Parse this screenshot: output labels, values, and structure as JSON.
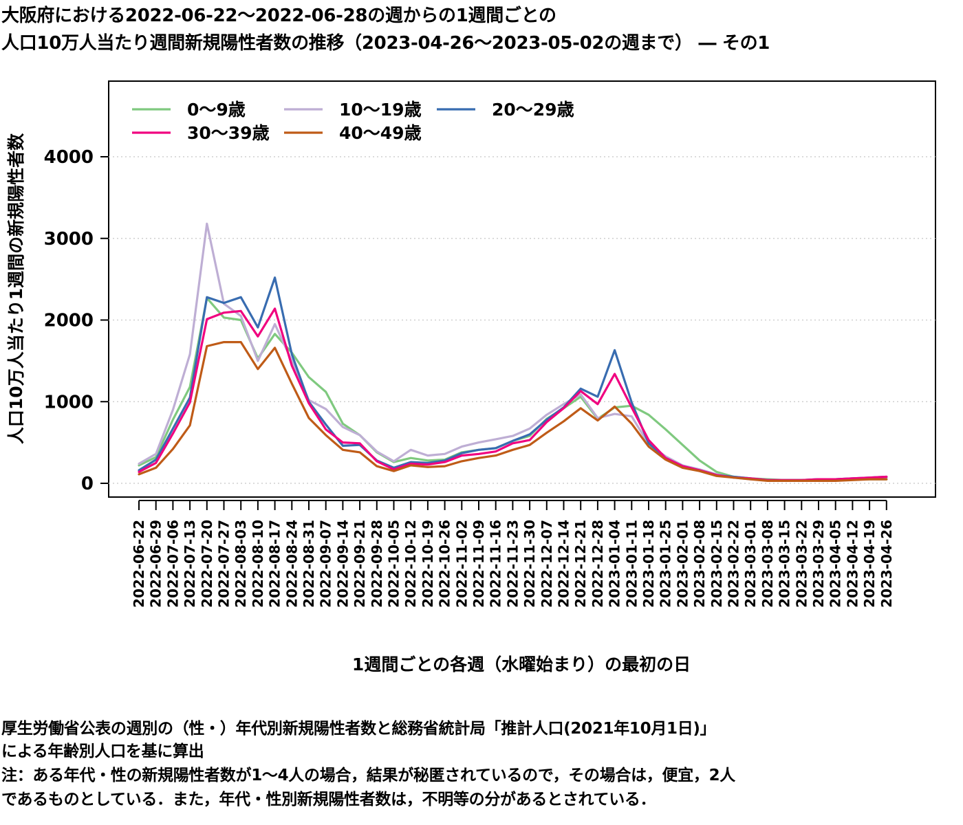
{
  "title": {
    "line1": "大阪府における2022-06-22～2022-06-28の週からの1週間ごとの",
    "line2": "人口10万人当たり週間新規陽性者数の推移（2023-04-26～2023-05-02の週まで） ― その1"
  },
  "notes": {
    "line1": "厚生労働省公表の週別の（性・）年代別新規陽性者数と総務省統計局「推計人口(2021年10月1日)」",
    "line2": "による年齢別人口を基に算出",
    "line3": "注：ある年代・性の新規陽性者数が1～4人の場合，結果が秘匿されているので，その場合は，便宜，2人",
    "line4": "であるものとしている．また，年代・性別新規陽性者数は，不明等の分があるとされている．"
  },
  "chart_data": {
    "type": "line",
    "xlabel": "1週間ごとの各週（水曜始まり）の最初の日",
    "ylabel": "人口10万人当たり1週間の新規陽性者数",
    "ylim": [
      -100,
      4900
    ],
    "yticks": [
      0,
      1000,
      2000,
      3000,
      4000
    ],
    "grid": true,
    "legend_position": "top-left",
    "categories": [
      "2022-06-22",
      "2022-06-29",
      "2022-07-06",
      "2022-07-13",
      "2022-07-20",
      "2022-07-27",
      "2022-08-03",
      "2022-08-10",
      "2022-08-17",
      "2022-08-24",
      "2022-08-31",
      "2022-09-07",
      "2022-09-14",
      "2022-09-21",
      "2022-09-28",
      "2022-10-05",
      "2022-10-12",
      "2022-10-19",
      "2022-10-26",
      "2022-11-02",
      "2022-11-09",
      "2022-11-16",
      "2022-11-23",
      "2022-11-30",
      "2022-12-07",
      "2022-12-14",
      "2022-12-21",
      "2022-12-28",
      "2023-01-04",
      "2023-01-11",
      "2023-01-18",
      "2023-01-25",
      "2023-02-01",
      "2023-02-08",
      "2023-02-15",
      "2023-02-22",
      "2023-03-01",
      "2023-03-08",
      "2023-03-15",
      "2023-03-22",
      "2023-03-29",
      "2023-04-05",
      "2023-04-12",
      "2023-04-19",
      "2023-04-26"
    ],
    "series": [
      {
        "name": "0～9歳",
        "color": "#7fc97f",
        "values": [
          220,
          320,
          780,
          1180,
          2270,
          2030,
          2000,
          1530,
          1830,
          1600,
          1300,
          1120,
          730,
          590,
          380,
          260,
          310,
          280,
          290,
          380,
          410,
          430,
          520,
          580,
          790,
          920,
          1060,
          790,
          930,
          950,
          840,
          660,
          470,
          280,
          140,
          80,
          60,
          50,
          40,
          40,
          40,
          40,
          50,
          50,
          50
        ]
      },
      {
        "name": "10～19歳",
        "color": "#beaed4",
        "values": [
          240,
          360,
          900,
          1580,
          3180,
          2200,
          2050,
          1500,
          1950,
          1500,
          1020,
          910,
          690,
          590,
          390,
          270,
          410,
          340,
          360,
          450,
          500,
          540,
          580,
          670,
          840,
          970,
          1090,
          800,
          850,
          820,
          480,
          330,
          220,
          170,
          110,
          70,
          50,
          40,
          40,
          40,
          50,
          50,
          60,
          60,
          70
        ]
      },
      {
        "name": "20～29歳",
        "color": "#386cb0",
        "values": [
          160,
          290,
          670,
          1050,
          2280,
          2210,
          2280,
          1910,
          2520,
          1580,
          1000,
          720,
          460,
          470,
          280,
          190,
          260,
          250,
          280,
          370,
          410,
          430,
          520,
          600,
          780,
          930,
          1160,
          1060,
          1630,
          990,
          490,
          310,
          210,
          160,
          100,
          80,
          60,
          40,
          40,
          40,
          50,
          50,
          60,
          70,
          80
        ]
      },
      {
        "name": "30～39歳",
        "color": "#f0027f",
        "values": [
          140,
          250,
          610,
          990,
          2010,
          2090,
          2110,
          1800,
          2140,
          1440,
          980,
          660,
          500,
          490,
          270,
          170,
          240,
          230,
          260,
          340,
          360,
          390,
          490,
          530,
          750,
          920,
          1130,
          970,
          1340,
          930,
          530,
          310,
          210,
          160,
          100,
          70,
          60,
          40,
          40,
          40,
          50,
          50,
          60,
          70,
          80
        ]
      },
      {
        "name": "40～49歳",
        "color": "#bf5b17",
        "values": [
          110,
          190,
          420,
          710,
          1680,
          1730,
          1730,
          1400,
          1660,
          1220,
          800,
          590,
          410,
          380,
          210,
          150,
          220,
          200,
          210,
          270,
          310,
          340,
          410,
          470,
          620,
          760,
          920,
          770,
          940,
          730,
          450,
          290,
          190,
          150,
          90,
          70,
          50,
          30,
          30,
          30,
          30,
          30,
          40,
          50,
          50
        ]
      }
    ]
  }
}
